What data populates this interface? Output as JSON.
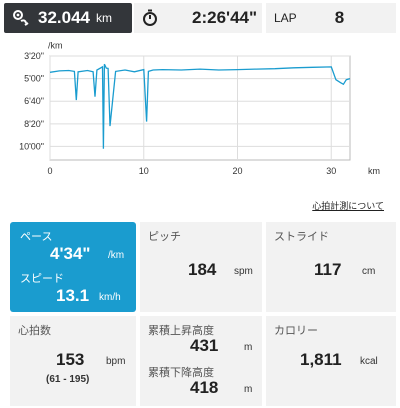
{
  "header": {
    "distance": {
      "value": "32.044",
      "unit": "km"
    },
    "time": {
      "value": "2:26'44\""
    },
    "lap": {
      "label": "LAP",
      "value": "8"
    }
  },
  "chart": {
    "y_unit": "/km",
    "y_ticks": [
      "3'20\"",
      "5'00\"",
      "6'40\"",
      "8'20\"",
      "10'00\""
    ],
    "x_ticks": [
      "0",
      "10",
      "20",
      "30"
    ],
    "x_unit": "km",
    "line_color": "#1a9ccf"
  },
  "chart_data": {
    "type": "line",
    "y_inverted": true,
    "xlim": [
      0,
      32
    ],
    "ylim_seconds_per_km": [
      200,
      660
    ],
    "series": [
      {
        "x": [
          0,
          1,
          2,
          2.6,
          2.8,
          3,
          4,
          4.6,
          4.8,
          5,
          5.6,
          5.7,
          5.8,
          6,
          6.2,
          6.4,
          7,
          8,
          9,
          10,
          10.3,
          10.5,
          11,
          12,
          14,
          16,
          18,
          20,
          22,
          24,
          26,
          28,
          30,
          30.5,
          31,
          31.3,
          31.6,
          32
        ],
        "y": [
          272,
          266,
          264,
          268,
          395,
          270,
          264,
          270,
          380,
          262,
          248,
          610,
          236,
          254,
          255,
          510,
          268,
          262,
          270,
          260,
          490,
          268,
          262,
          260,
          262,
          258,
          262,
          260,
          258,
          256,
          252,
          250,
          248,
          305,
          318,
          325,
          305,
          300
        ]
      }
    ]
  },
  "hr_link": "心拍計測について",
  "pace": {
    "label": "ペース",
    "value": "4'34\"",
    "unit": "/km"
  },
  "speed": {
    "label": "スピード",
    "value": "13.1",
    "unit": "km/h"
  },
  "pitch": {
    "label": "ピッチ",
    "value": "184",
    "unit": "spm"
  },
  "stride": {
    "label": "ストライド",
    "value": "117",
    "unit": "cm"
  },
  "heart_rate": {
    "label": "心拍数",
    "value": "153",
    "unit": "bpm",
    "range": "(61 - 195)"
  },
  "ascent": {
    "label": "累積上昇高度",
    "value": "431",
    "unit": "m"
  },
  "descent": {
    "label": "累積下降高度",
    "value": "418",
    "unit": "m"
  },
  "calorie": {
    "label": "カロリー",
    "value": "1,811",
    "unit": "kcal"
  }
}
